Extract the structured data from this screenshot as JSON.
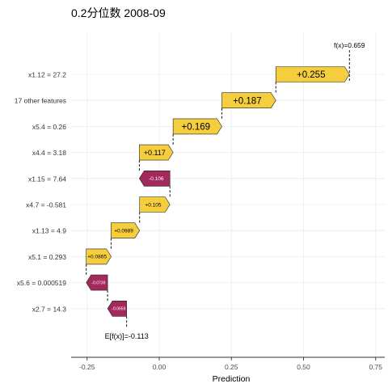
{
  "chart_data": {
    "type": "waterfall",
    "title": "0.2分位数 2008-09",
    "xlabel": "Prediction",
    "xlim": [
      -0.28,
      0.77
    ],
    "x_ticks": [
      -0.25,
      0.0,
      0.25,
      0.5,
      0.75
    ],
    "x_tick_labels": [
      "-0.25",
      "0.00",
      "0.25",
      "0.50",
      "0.75"
    ],
    "grid": true,
    "base_value": -0.113,
    "base_label": "E[f(x)]=-0.113",
    "final_value": 0.659,
    "final_label": "f(x)=0.659",
    "colors": {
      "positive": "#F5CE3E",
      "negative": "#A3285C"
    },
    "features": [
      {
        "label": "x1.12 = 27.2",
        "value": 0.255,
        "text": "+0.255",
        "start": 0.404
      },
      {
        "label": "17 other features",
        "value": 0.187,
        "text": "+0.187",
        "start": 0.217
      },
      {
        "label": "x5.4 = 0.26",
        "value": 0.169,
        "text": "+0.169",
        "start": 0.048
      },
      {
        "label": "x4.4 = 3.18",
        "value": 0.117,
        "text": "+0.117",
        "start": -0.069
      },
      {
        "label": "x1.15 = 7.64",
        "value": -0.106,
        "text": "-0.106",
        "start": 0.037
      },
      {
        "label": "x4.7 = -0.581",
        "value": 0.105,
        "text": "+0.105",
        "start": -0.068
      },
      {
        "label": "x1.13 = 4.9",
        "value": 0.0989,
        "text": "+0.0989",
        "start": -0.167
      },
      {
        "label": "x5.1 = 0.293",
        "value": 0.0865,
        "text": "+0.0865",
        "start": -0.253
      },
      {
        "label": "x5.6 = 0.000519",
        "value": -0.0739,
        "text": "-0.0739",
        "start": -0.179
      },
      {
        "label": "x2.7 = 14.3",
        "value": -0.0659,
        "text": "-0.0659",
        "start": -0.113
      }
    ]
  }
}
